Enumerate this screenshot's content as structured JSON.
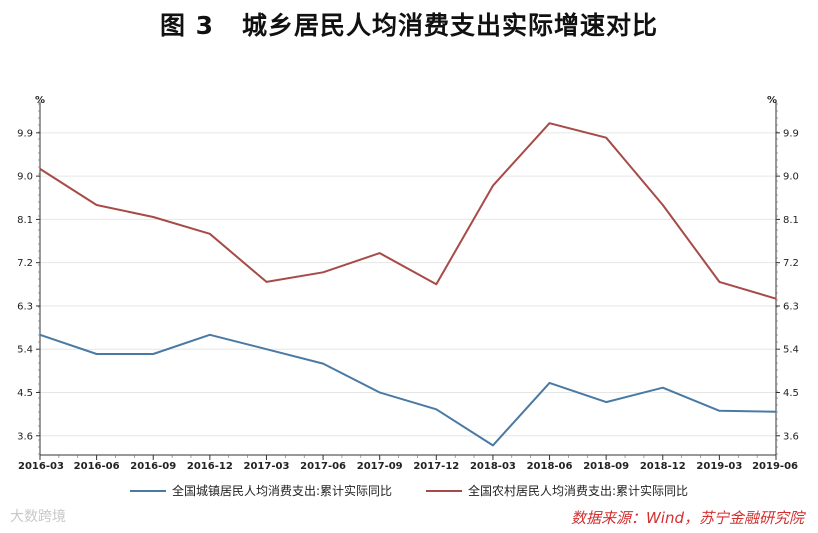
{
  "title_fig": "图 3",
  "title_text": "城乡居民人均消费支出实际增速对比",
  "source": "数据来源：Wind，苏宁金融研究院",
  "watermark": "大数跨境",
  "colors": {
    "urban": "#4a7aa4",
    "rural": "#a64b47"
  },
  "chart_data": {
    "type": "line",
    "title": "城乡居民人均消费支出实际增速对比",
    "unit_left": "%",
    "unit_right": "%",
    "x": [
      "2016-03",
      "2016-06",
      "2016-09",
      "2016-12",
      "2017-03",
      "2017-06",
      "2017-09",
      "2017-12",
      "2018-03",
      "2018-06",
      "2018-09",
      "2018-12",
      "2019-03",
      "2019-06"
    ],
    "yticks": [
      "3.6",
      "4.5",
      "5.4",
      "6.3",
      "7.2",
      "8.1",
      "9.0",
      "9.9"
    ],
    "ylim": [
      3.2,
      10.5
    ],
    "grid": true,
    "legend_position": "bottom",
    "series": [
      {
        "name": "全国城镇居民人均消费支出:累计实际同比",
        "values": [
          5.7,
          5.3,
          5.3,
          5.7,
          5.4,
          5.1,
          4.5,
          4.15,
          3.4,
          4.7,
          4.3,
          4.6,
          4.12,
          4.1
        ]
      },
      {
        "name": "全国农村居民人均消费支出:累计实际同比",
        "values": [
          9.15,
          8.4,
          8.15,
          7.8,
          6.8,
          7.0,
          7.4,
          6.75,
          8.8,
          10.1,
          9.8,
          8.4,
          6.8,
          6.45
        ]
      }
    ]
  }
}
